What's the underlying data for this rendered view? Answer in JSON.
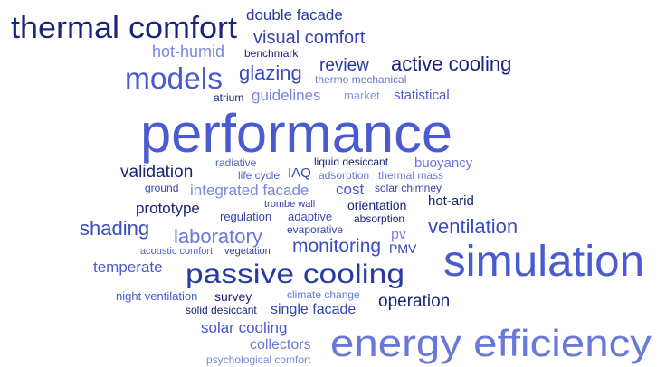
{
  "words": [
    "thermal comfort",
    "double facade",
    "visual comfort",
    "hot-humid",
    "benchmark",
    "models",
    "glazing",
    "review",
    "active cooling",
    "thermo mechanical",
    "atrium",
    "guidelines",
    "market",
    "statistical",
    "performance",
    "radiative",
    "liquid desiccant",
    "buoyancy",
    "validation",
    "life cycle",
    "IAQ",
    "adsorption",
    "thermal mass",
    "ground",
    "integrated facade",
    "cost",
    "solar chimney",
    "trombe wall",
    "hot-arid",
    "prototype",
    "orientation",
    "regulation",
    "adaptive",
    "absorption",
    "shading",
    "ventilation",
    "evaporative",
    "laboratory",
    "pv",
    "monitoring",
    "acoustic comfort",
    "vegetation",
    "PMV",
    "temperate",
    "passive cooling",
    "simulation",
    "night ventilation",
    "survey",
    "climate change",
    "operation",
    "solid desiccant",
    "single facade",
    "solar cooling",
    "collectors",
    "energy efficiency",
    "psychological comfort"
  ]
}
